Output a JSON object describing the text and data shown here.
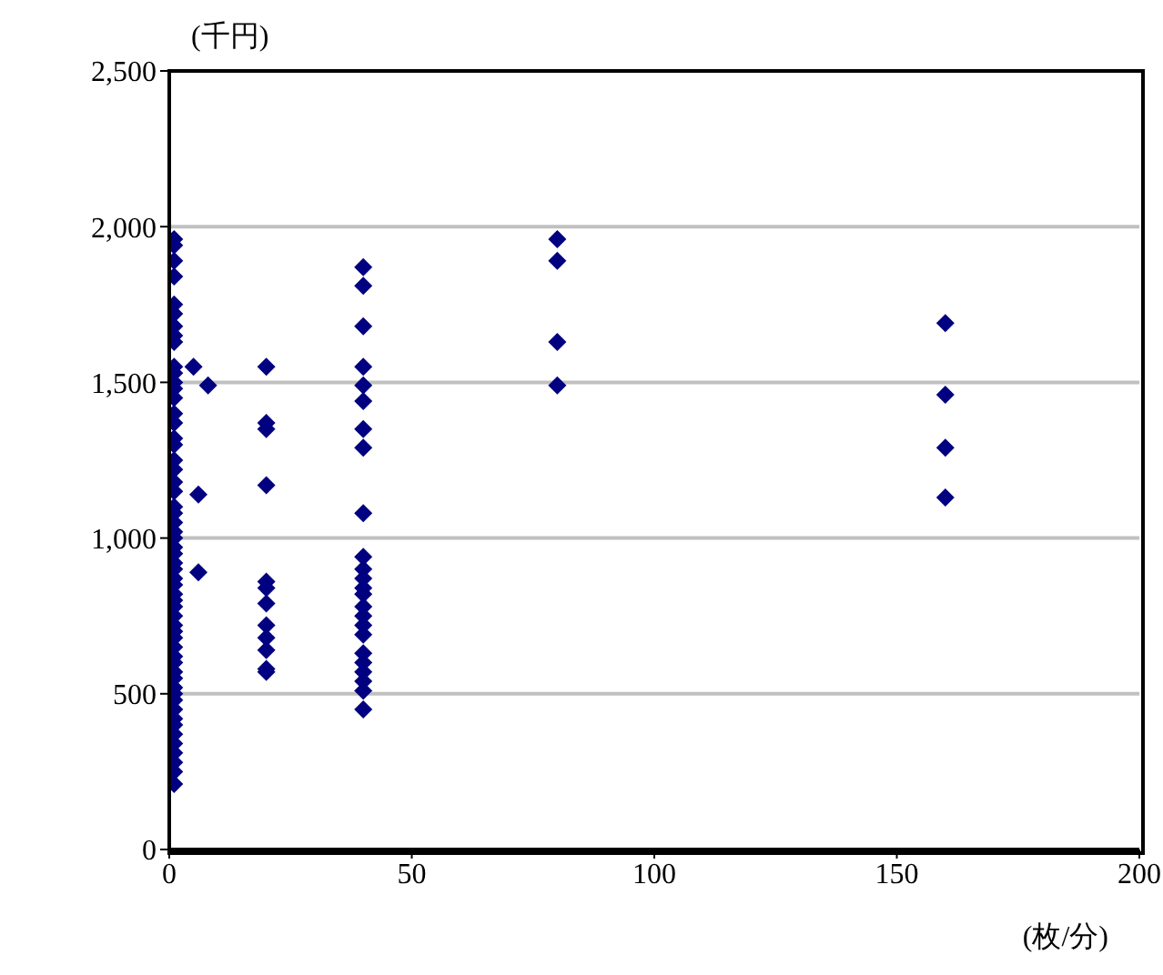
{
  "chart_data": {
    "type": "scatter",
    "xlabel": "(枚/分)",
    "ylabel": "(千円)",
    "series": [
      {
        "color": "#000080",
        "x": [
          1,
          1,
          1,
          1,
          1,
          1,
          1,
          1,
          1,
          1,
          1,
          1,
          1,
          1,
          1,
          1,
          1,
          1,
          1,
          1,
          1,
          1,
          1,
          1,
          1,
          1,
          1,
          1,
          1,
          1,
          1,
          1,
          1,
          1,
          1,
          1,
          1,
          1,
          1,
          1,
          1,
          1,
          1,
          1,
          1,
          1,
          1,
          1,
          1,
          1,
          1,
          1,
          1,
          1,
          1,
          1,
          1,
          5,
          8,
          6,
          6,
          20,
          20,
          20,
          20,
          20,
          20,
          20,
          20,
          20,
          20,
          20,
          20,
          40,
          40,
          40,
          40,
          40,
          40,
          40,
          40,
          40,
          40,
          40,
          40,
          40,
          40,
          40,
          40,
          40,
          40,
          40,
          40,
          40,
          40,
          40,
          40,
          80,
          80,
          80,
          80,
          160,
          160,
          160,
          160
        ],
        "values": [
          1960,
          1940,
          1890,
          1840,
          1750,
          1720,
          1680,
          1650,
          1630,
          1550,
          1530,
          1500,
          1480,
          1450,
          1400,
          1370,
          1320,
          1300,
          1250,
          1220,
          1180,
          1150,
          1100,
          1080,
          1050,
          1020,
          1000,
          970,
          950,
          920,
          900,
          870,
          850,
          820,
          800,
          780,
          750,
          720,
          700,
          680,
          650,
          620,
          600,
          570,
          550,
          520,
          500,
          480,
          450,
          420,
          400,
          370,
          340,
          310,
          280,
          250,
          210,
          1550,
          1490,
          1140,
          890,
          1550,
          1370,
          1350,
          1170,
          860,
          840,
          790,
          720,
          680,
          640,
          580,
          570,
          1870,
          1810,
          1680,
          1550,
          1490,
          1440,
          1350,
          1290,
          1080,
          940,
          900,
          870,
          840,
          820,
          780,
          750,
          720,
          690,
          630,
          600,
          570,
          540,
          510,
          450,
          1960,
          1890,
          1630,
          1490,
          1690,
          1460,
          1290,
          1130
        ]
      }
    ],
    "xlim": [
      0,
      200
    ],
    "xticks": [
      0,
      50,
      100,
      150,
      200
    ],
    "ylim": [
      0,
      2500
    ],
    "yticks": [
      0,
      {
        "value": 500,
        "label": "500"
      },
      {
        "value": 1000,
        "label": "1,000"
      },
      {
        "value": 1500,
        "label": "1,500"
      },
      {
        "value": 2000,
        "label": "2,000"
      },
      {
        "value": 2500,
        "label": "2,500"
      }
    ],
    "grid": "y",
    "marker": "diamond"
  }
}
